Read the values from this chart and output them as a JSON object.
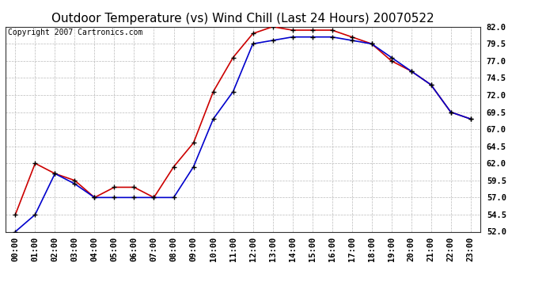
{
  "title": "Outdoor Temperature (vs) Wind Chill (Last 24 Hours) 20070522",
  "copyright": "Copyright 2007 Cartronics.com",
  "x_labels": [
    "00:00",
    "01:00",
    "02:00",
    "03:00",
    "04:00",
    "05:00",
    "06:00",
    "07:00",
    "08:00",
    "09:00",
    "10:00",
    "11:00",
    "12:00",
    "13:00",
    "14:00",
    "15:00",
    "16:00",
    "17:00",
    "18:00",
    "19:00",
    "20:00",
    "21:00",
    "22:00",
    "23:00"
  ],
  "temp": [
    54.5,
    62.0,
    60.5,
    59.5,
    57.0,
    58.5,
    58.5,
    57.0,
    61.5,
    65.0,
    72.5,
    77.5,
    81.0,
    82.0,
    81.5,
    81.5,
    81.5,
    80.5,
    79.5,
    77.0,
    75.5,
    73.5,
    69.5,
    68.5
  ],
  "wind_chill": [
    52.0,
    54.5,
    60.5,
    59.0,
    57.0,
    57.0,
    57.0,
    57.0,
    57.0,
    61.5,
    68.5,
    72.5,
    79.5,
    80.0,
    80.5,
    80.5,
    80.5,
    80.0,
    79.5,
    77.5,
    75.5,
    73.5,
    69.5,
    68.5
  ],
  "ylim": [
    52.0,
    82.0
  ],
  "yticks": [
    52.0,
    54.5,
    57.0,
    59.5,
    62.0,
    64.5,
    67.0,
    69.5,
    72.0,
    74.5,
    77.0,
    79.5,
    82.0
  ],
  "temp_color": "#cc0000",
  "wind_chill_color": "#0000cc",
  "background_color": "#ffffff",
  "grid_color": "#bbbbbb",
  "title_fontsize": 11,
  "tick_fontsize": 7.5,
  "copyright_fontsize": 7
}
